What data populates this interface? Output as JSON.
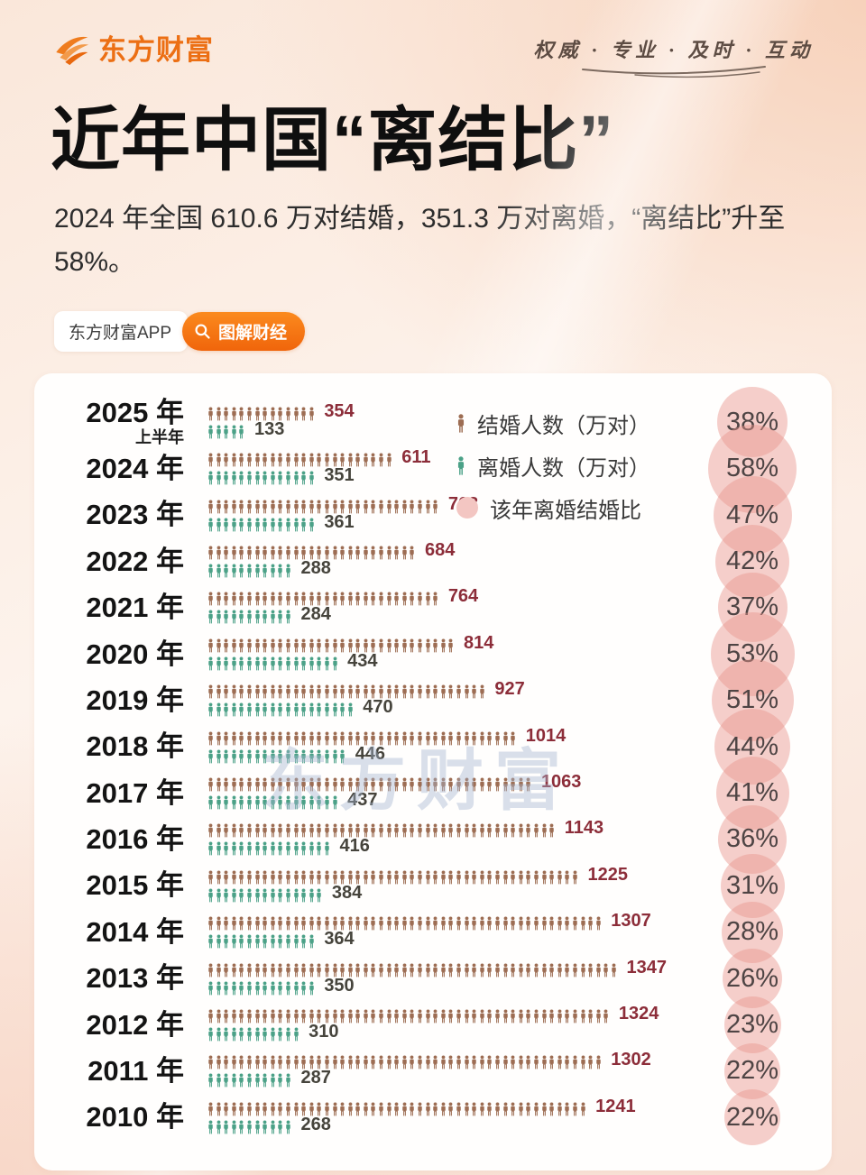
{
  "header": {
    "brand": "东方财富",
    "slogan": "权威 · 专业 · 及时 · 互动"
  },
  "title": "近年中国“离结比”",
  "subtitle": "2024 年全国 610.6 万对结婚，351.3 万对离婚，“离结比”升至 58%。",
  "tags": {
    "app": "东方财富APP",
    "topic": "图解财经"
  },
  "watermark": "东方财富",
  "colors": {
    "brand_orange": "#ec6f14",
    "marriage_icon": "#9d6d53",
    "divorce_icon": "#4ba187",
    "marriage_value_text": "#8c2d39",
    "divorce_value_text": "#46443c",
    "ratio_circle_pink": "#f3c6c2",
    "percent_text": "#4e4444"
  },
  "chart_data": {
    "type": "pictogram-bar",
    "unit": "万对",
    "value_per_icon": 25.4,
    "legend": {
      "marriage": "结婚人数（万对）",
      "divorce": "离婚人数（万对）",
      "ratio": "该年离婚结婚比"
    },
    "rows": [
      {
        "year": "2025 年",
        "year_sub": "上半年",
        "marriage": 354,
        "divorce": 133,
        "ratio_pct": 38
      },
      {
        "year": "2024 年",
        "marriage": 611,
        "divorce": 351,
        "ratio_pct": 58
      },
      {
        "year": "2023 年",
        "marriage": 768,
        "divorce": 361,
        "ratio_pct": 47
      },
      {
        "year": "2022 年",
        "marriage": 684,
        "divorce": 288,
        "ratio_pct": 42
      },
      {
        "year": "2021 年",
        "marriage": 764,
        "divorce": 284,
        "ratio_pct": 37
      },
      {
        "year": "2020 年",
        "marriage": 814,
        "divorce": 434,
        "ratio_pct": 53
      },
      {
        "year": "2019 年",
        "marriage": 927,
        "divorce": 470,
        "ratio_pct": 51
      },
      {
        "year": "2018 年",
        "marriage": 1014,
        "divorce": 446,
        "ratio_pct": 44
      },
      {
        "year": "2017 年",
        "marriage": 1063,
        "divorce": 437,
        "ratio_pct": 41
      },
      {
        "year": "2016 年",
        "marriage": 1143,
        "divorce": 416,
        "ratio_pct": 36
      },
      {
        "year": "2015 年",
        "marriage": 1225,
        "divorce": 384,
        "ratio_pct": 31
      },
      {
        "year": "2014 年",
        "marriage": 1307,
        "divorce": 364,
        "ratio_pct": 28
      },
      {
        "year": "2013 年",
        "marriage": 1347,
        "divorce": 350,
        "ratio_pct": 26
      },
      {
        "year": "2012 年",
        "marriage": 1324,
        "divorce": 310,
        "ratio_pct": 23
      },
      {
        "year": "2011 年",
        "marriage": 1302,
        "divorce": 287,
        "ratio_pct": 22
      },
      {
        "year": "2010 年",
        "marriage": 1241,
        "divorce": 268,
        "ratio_pct": 22
      }
    ]
  }
}
